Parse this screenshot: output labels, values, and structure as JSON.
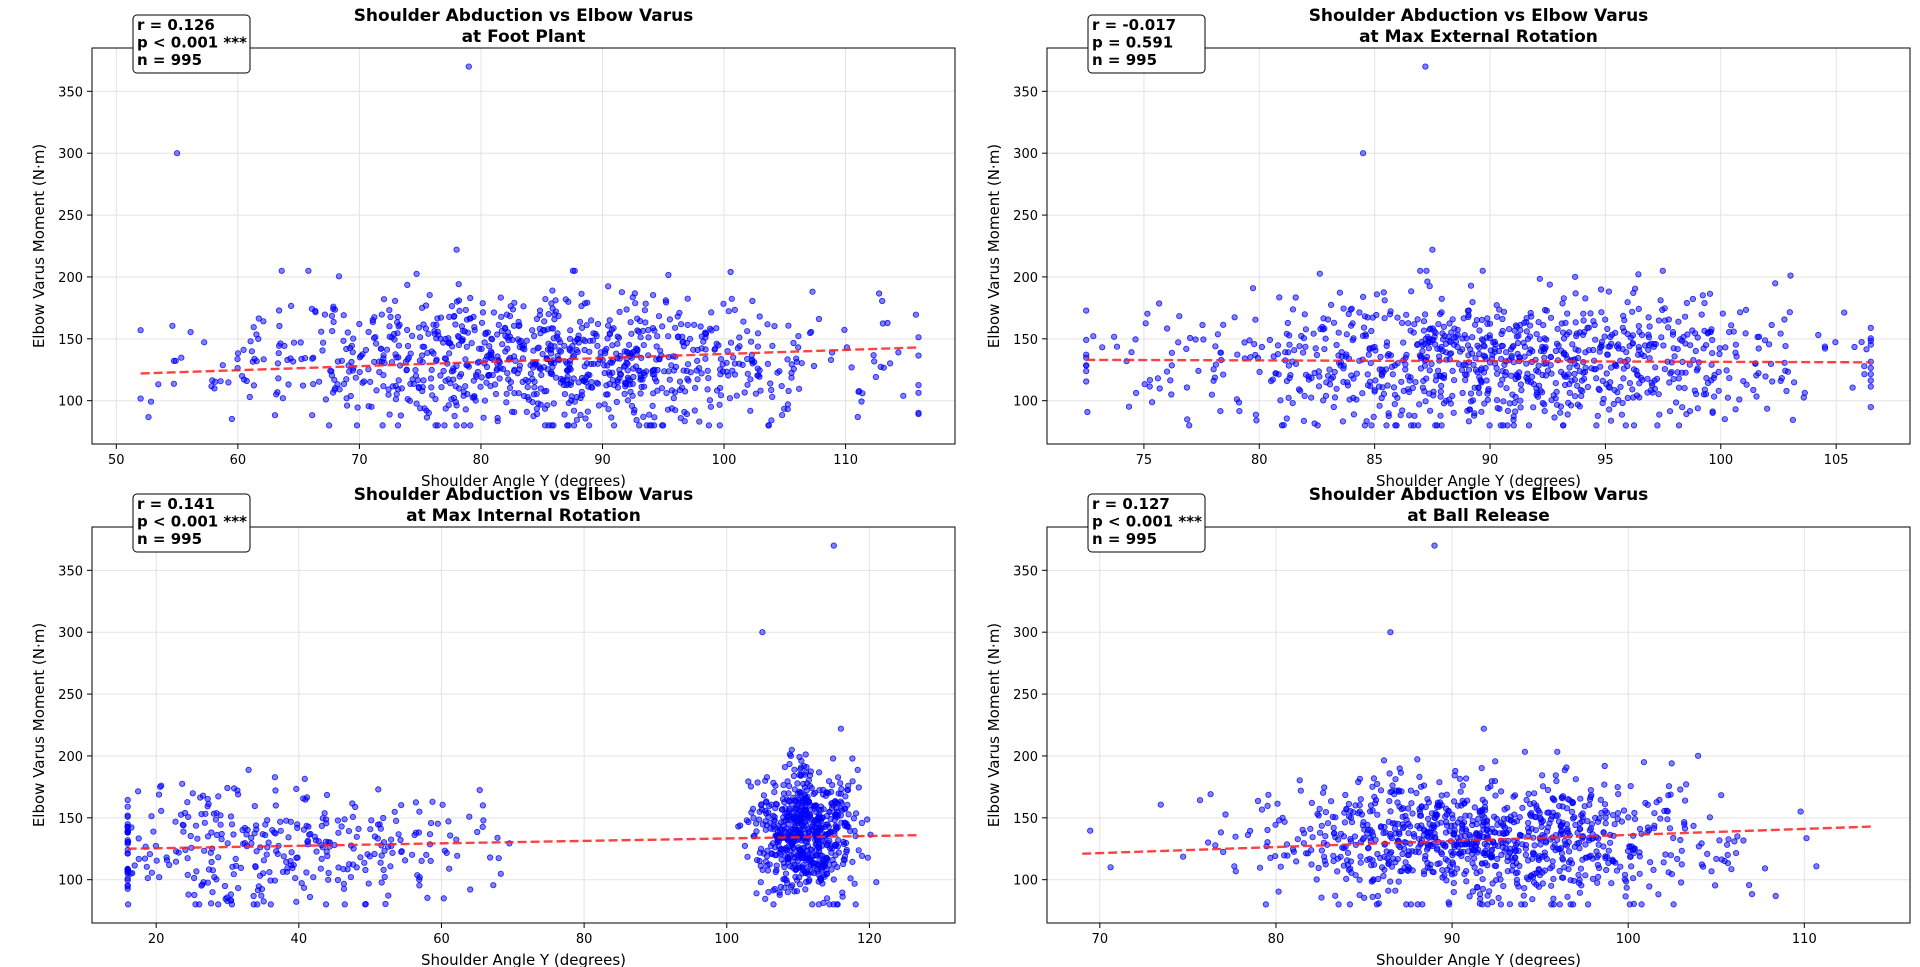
{
  "chart_data": [
    {
      "type": "scatter",
      "title": "Shoulder Abduction vs Elbow Varus\nat Foot Plant",
      "xlabel": "Shoulder Angle Y (degrees)",
      "ylabel": "Elbow Varus Moment (N·m)",
      "xlim": [
        48,
        119
      ],
      "ylim": [
        65,
        385
      ],
      "xticks": [
        50,
        60,
        70,
        80,
        90,
        100,
        110
      ],
      "yticks": [
        100,
        150,
        200,
        250,
        300,
        350
      ],
      "grid": true,
      "stats": [
        "r = 0.126",
        "p < 0.001 ***",
        "n = 995"
      ],
      "trend": {
        "x": [
          52,
          116
        ],
        "y": [
          122,
          143
        ]
      },
      "cluster": {
        "cx": 85,
        "sx": 12,
        "xmin": 52,
        "xmax": 116,
        "cy": 133,
        "sy": 27,
        "ymin": 80,
        "ymax": 205,
        "n": 995,
        "seed": 11
      },
      "outliers": [
        {
          "x": 79,
          "y": 370
        },
        {
          "x": 55,
          "y": 300
        },
        {
          "x": 78,
          "y": 222
        }
      ]
    },
    {
      "type": "scatter",
      "title": "Shoulder Abduction vs Elbow Varus\nat Max External Rotation",
      "xlabel": "Shoulder Angle Y (degrees)",
      "ylabel": "Elbow Varus Moment (N·m)",
      "xlim": [
        70.8,
        108.2
      ],
      "ylim": [
        65,
        385
      ],
      "xticks": [
        75,
        80,
        85,
        90,
        95,
        100,
        105
      ],
      "yticks": [
        100,
        150,
        200,
        250,
        300,
        350
      ],
      "grid": true,
      "stats": [
        "r = -0.017",
        "p = 0.591",
        "n = 995"
      ],
      "trend": {
        "x": [
          72.5,
          106.5
        ],
        "y": [
          133,
          131
        ]
      },
      "cluster": {
        "cx": 90,
        "sx": 7,
        "xmin": 72.5,
        "xmax": 106.5,
        "cy": 131,
        "sy": 27,
        "ymin": 80,
        "ymax": 205,
        "n": 995,
        "seed": 23
      },
      "outliers": [
        {
          "x": 87.2,
          "y": 370
        },
        {
          "x": 84.5,
          "y": 300
        },
        {
          "x": 87.5,
          "y": 222
        }
      ]
    },
    {
      "type": "scatter",
      "title": "Shoulder Abduction vs Elbow Varus\nat Max Internal Rotation",
      "xlabel": "Shoulder Angle Y (degrees)",
      "ylabel": "Elbow Varus Moment (N·m)",
      "xlim": [
        11,
        132
      ],
      "ylim": [
        65,
        385
      ],
      "xticks": [
        20,
        40,
        60,
        80,
        100,
        120
      ],
      "yticks": [
        100,
        150,
        200,
        250,
        300,
        350
      ],
      "grid": true,
      "stats": [
        "r = 0.141",
        "p < 0.001 ***",
        "n = 995"
      ],
      "trend": {
        "x": [
          16,
          127
        ],
        "y": [
          125,
          136
        ]
      },
      "clusters": [
        {
          "cx": 36,
          "sx": 14,
          "xmin": 16,
          "xmax": 100,
          "cy": 128,
          "sy": 25,
          "ymin": 80,
          "ymax": 205,
          "n": 360,
          "seed": 37
        },
        {
          "cx": 111,
          "sx": 3.5,
          "xmin": 100,
          "xmax": 127,
          "cy": 138,
          "sy": 26,
          "ymin": 80,
          "ymax": 205,
          "n": 635,
          "seed": 41
        }
      ],
      "outliers": [
        {
          "x": 115,
          "y": 370
        },
        {
          "x": 105,
          "y": 300
        },
        {
          "x": 116,
          "y": 222
        }
      ]
    },
    {
      "type": "scatter",
      "title": "Shoulder Abduction vs Elbow Varus\nat Ball Release",
      "xlabel": "Shoulder Angle Y (degrees)",
      "ylabel": "Elbow Varus Moment (N·m)",
      "xlim": [
        67,
        116
      ],
      "ylim": [
        65,
        385
      ],
      "xticks": [
        70,
        80,
        90,
        100,
        110
      ],
      "yticks": [
        100,
        150,
        200,
        250,
        300,
        350
      ],
      "grid": true,
      "stats": [
        "r = 0.127",
        "p < 0.001 ***",
        "n = 995"
      ],
      "trend": {
        "x": [
          69,
          114
        ],
        "y": [
          121,
          143
        ]
      },
      "cluster": {
        "cx": 92,
        "sx": 6.5,
        "xmin": 69,
        "xmax": 114,
        "cy": 132,
        "sy": 26,
        "ymin": 80,
        "ymax": 205,
        "n": 995,
        "seed": 53
      },
      "outliers": [
        {
          "x": 89,
          "y": 370
        },
        {
          "x": 86.5,
          "y": 300
        },
        {
          "x": 91.8,
          "y": 222
        }
      ]
    }
  ]
}
